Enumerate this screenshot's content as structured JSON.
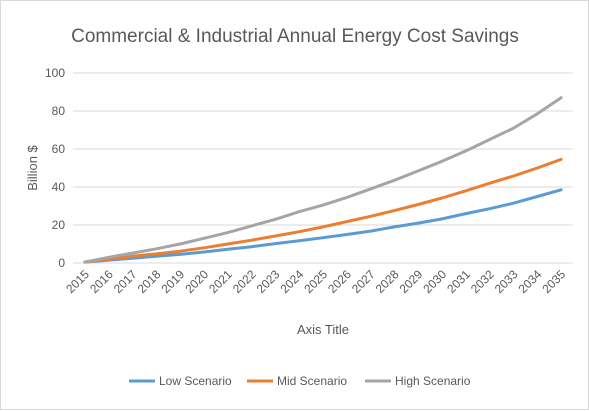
{
  "chart_data": {
    "type": "line",
    "title": "Commercial & Industrial Annual Energy Cost Savings",
    "xlabel": "Axis Title",
    "ylabel": "Billion $",
    "x": [
      "2015",
      "2016",
      "2017",
      "2018",
      "2019",
      "2020",
      "2021",
      "2022",
      "2023",
      "2024",
      "2025",
      "2026",
      "2027",
      "2028",
      "2029",
      "2030",
      "2031",
      "2032",
      "2033",
      "2034",
      "2035"
    ],
    "ylim": [
      0,
      100
    ],
    "yticks": [
      0,
      20,
      40,
      60,
      80,
      100
    ],
    "grid": true,
    "legend_position": "bottom",
    "series": [
      {
        "name": "Low Scenario",
        "color": "#5b9bd5",
        "values": [
          0.5,
          1.5,
          2.5,
          3.5,
          4.5,
          5.8,
          7.2,
          8.6,
          10.2,
          11.7,
          13.3,
          15.0,
          16.8,
          19.0,
          21.0,
          23.2,
          26.0,
          28.6,
          31.5,
          35.0,
          38.5
        ]
      },
      {
        "name": "Mid Scenario",
        "color": "#ed7d31",
        "values": [
          0.5,
          2.0,
          3.5,
          4.8,
          6.2,
          8.0,
          10.0,
          12.0,
          14.2,
          16.5,
          19.0,
          21.8,
          24.6,
          27.6,
          30.8,
          34.2,
          38.0,
          42.0,
          45.8,
          50.0,
          54.5
        ]
      },
      {
        "name": "High Scenario",
        "color": "#a5a5a5",
        "values": [
          0.5,
          3.0,
          5.2,
          7.5,
          10.0,
          13.0,
          16.0,
          19.5,
          23.0,
          27.0,
          30.5,
          34.5,
          39.0,
          43.5,
          48.5,
          53.5,
          59.0,
          65.0,
          71.0,
          78.5,
          87.0
        ]
      }
    ]
  }
}
